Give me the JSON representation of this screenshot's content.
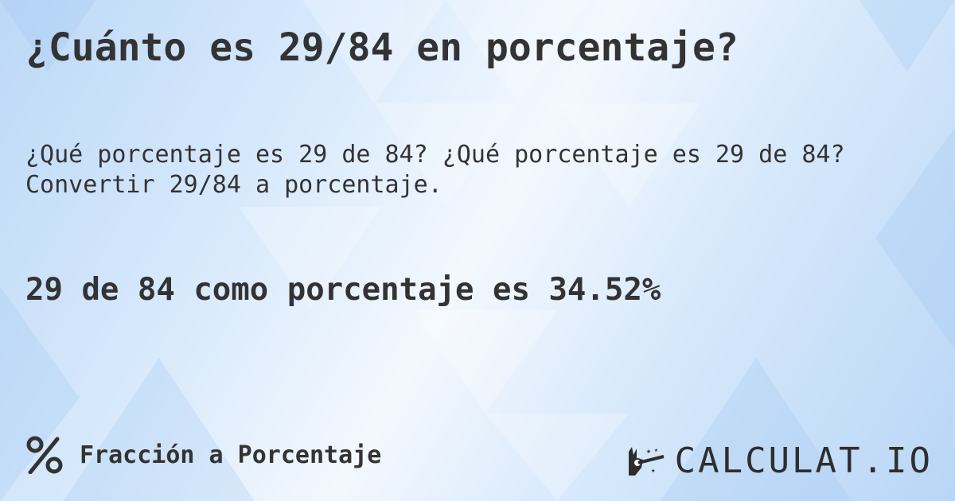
{
  "title": "¿Cuánto es 29/84 en porcentaje?",
  "description": "¿Qué porcentaje es 29 de 84? ¿Qué porcentaje es 29 de 84? Convertir 29/84 a porcentaje.",
  "result": "29 de 84 como porcentaje es 34.52%",
  "footer": {
    "category_icon": "percent-icon",
    "category_label": "Fracción a Porcentaje"
  },
  "logo": {
    "text": "CALCULAT.IO",
    "icon": "magic-hand-wand-icon"
  },
  "colors": {
    "text": "#333333",
    "background_light": "#f3f8fe",
    "background_blue": "#bcd8f7"
  }
}
